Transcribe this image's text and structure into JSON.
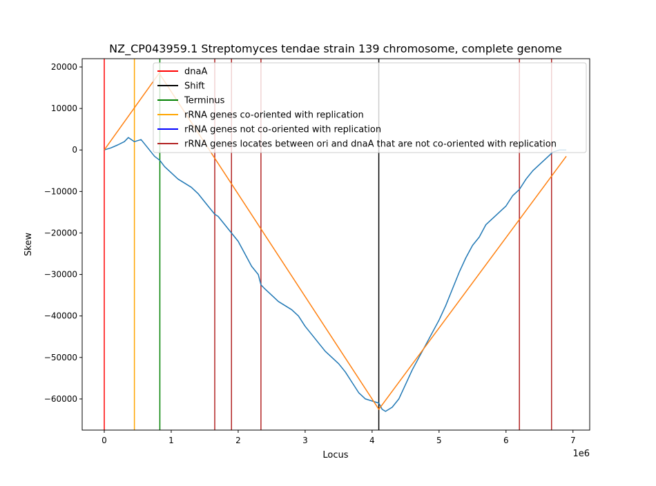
{
  "chart_data": {
    "type": "line",
    "title": "NZ_CP043959.1 Streptomyces tendae strain 139 chromosome, complete genome",
    "xlabel": "Locus",
    "ylabel": "Skew",
    "x_offset_label": "1e6",
    "xlim": [
      -330000,
      7250000
    ],
    "ylim": [
      -67500,
      22000
    ],
    "xticks": [
      0,
      1000000,
      2000000,
      3000000,
      4000000,
      5000000,
      6000000,
      7000000
    ],
    "xtick_labels": [
      "0",
      "1",
      "2",
      "3",
      "4",
      "5",
      "6",
      "7"
    ],
    "yticks": [
      20000,
      10000,
      0,
      -10000,
      -20000,
      -30000,
      -40000,
      -50000,
      -60000
    ],
    "ytick_labels": [
      "20000",
      "10000",
      "0",
      "−10000",
      "−20000",
      "−30000",
      "−40000",
      "−50000",
      "−60000"
    ],
    "grid": false,
    "legend_position": "top-right",
    "legend": [
      {
        "label": "dnaA",
        "color": "#ff0000"
      },
      {
        "label": "Shift",
        "color": "#000000"
      },
      {
        "label": "Terminus",
        "color": "#008000"
      },
      {
        "label": "rRNA genes co-oriented with replication",
        "color": "#ffa500"
      },
      {
        "label": "rRNA genes not co-oriented with replication",
        "color": "#0000ff"
      },
      {
        "label": "rRNA genes locates between ori and dnaA that are not co-oriented with replication",
        "color": "#b22222"
      }
    ],
    "vlines": [
      {
        "x": 0,
        "color": "#ff0000",
        "series": "dnaA"
      },
      {
        "x": 4100000,
        "color": "#000000",
        "series": "Shift"
      },
      {
        "x": 830000,
        "color": "#008000",
        "series": "Terminus"
      },
      {
        "x": 450000,
        "color": "#ffa500",
        "series": "rRNA genes co-oriented with replication"
      },
      {
        "x": 1650000,
        "color": "#b22222",
        "series": "rRNA genes locates between ori and dnaA that are not co-oriented with replication"
      },
      {
        "x": 1900000,
        "color": "#b22222",
        "series": "rRNA genes locates between ori and dnaA that are not co-oriented with replication"
      },
      {
        "x": 2340000,
        "color": "#b22222",
        "series": "rRNA genes locates between ori and dnaA that are not co-oriented with replication"
      },
      {
        "x": 6200000,
        "color": "#b22222",
        "series": "rRNA genes locates between ori and dnaA that are not co-oriented with replication"
      },
      {
        "x": 6680000,
        "color": "#b22222",
        "series": "rRNA genes locates between ori and dnaA that are not co-oriented with replication"
      }
    ],
    "series": [
      {
        "color": "#1f77b4",
        "x": [
          0,
          100000,
          200000,
          300000,
          360000,
          450000,
          550000,
          650000,
          750000,
          830000,
          900000,
          1000000,
          1100000,
          1200000,
          1300000,
          1400000,
          1500000,
          1600000,
          1650000,
          1700000,
          1800000,
          1900000,
          2000000,
          2100000,
          2200000,
          2300000,
          2340000,
          2400000,
          2500000,
          2600000,
          2700000,
          2800000,
          2900000,
          3000000,
          3100000,
          3200000,
          3300000,
          3400000,
          3500000,
          3600000,
          3700000,
          3800000,
          3900000,
          4000000,
          4100000,
          4150000,
          4200000,
          4300000,
          4400000,
          4500000,
          4600000,
          4700000,
          4800000,
          4900000,
          5000000,
          5100000,
          5200000,
          5300000,
          5400000,
          5500000,
          5600000,
          5700000,
          5800000,
          5900000,
          6000000,
          6100000,
          6200000,
          6300000,
          6400000,
          6500000,
          6600000,
          6700000,
          6800000,
          6900000
        ],
        "y": [
          0,
          500,
          1200,
          2000,
          3000,
          2000,
          2500,
          500,
          -1500,
          -2500,
          -4000,
          -5500,
          -7000,
          -8000,
          -9000,
          -10500,
          -12500,
          -14500,
          -15500,
          -16000,
          -18000,
          -20000,
          -22000,
          -25000,
          -28000,
          -30000,
          -32500,
          -33500,
          -35000,
          -36500,
          -37500,
          -38500,
          -40000,
          -42500,
          -44500,
          -46500,
          -48500,
          -50000,
          -51500,
          -53500,
          -56000,
          -58500,
          -60000,
          -60500,
          -61000,
          -62500,
          -63000,
          -62000,
          -60000,
          -56500,
          -53000,
          -50000,
          -47000,
          -44000,
          -41000,
          -37500,
          -33500,
          -29500,
          -26000,
          -23000,
          -21000,
          -18000,
          -16500,
          -15000,
          -13500,
          -11000,
          -9500,
          -7000,
          -5000,
          -3500,
          -2000,
          -500,
          0,
          0
        ]
      },
      {
        "color": "#ff7f0e",
        "x": [
          0,
          820000,
          4100000,
          6900000
        ],
        "y": [
          0,
          18500,
          -62500,
          -1500
        ]
      }
    ]
  }
}
